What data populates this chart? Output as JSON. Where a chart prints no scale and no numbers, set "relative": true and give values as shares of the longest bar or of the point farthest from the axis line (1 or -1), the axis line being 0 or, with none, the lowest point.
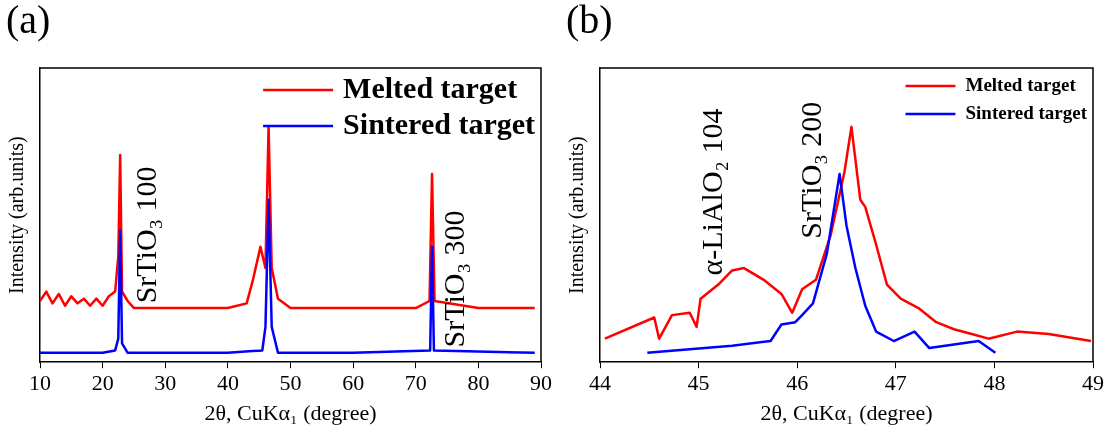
{
  "chart_data": [
    {
      "type": "line",
      "title": "(a)",
      "xlabel": "2θ, CuKα₁ (degree)",
      "ylabel": "Intensity (arb.units)",
      "relative": true,
      "xlim": [
        10,
        90
      ],
      "xticks": [
        10,
        20,
        30,
        40,
        50,
        60,
        70,
        80,
        90
      ],
      "grid": false,
      "legend": "top right",
      "marker": "none",
      "series": [
        {
          "name": "Melted target",
          "color": "#ff0000",
          "x": [
            10,
            11,
            12,
            13,
            14,
            15,
            16,
            17,
            18,
            19,
            20,
            21,
            22,
            22.5,
            22.8,
            23.1,
            24,
            25,
            30,
            35,
            40,
            43,
            44,
            45.2,
            46,
            46.5,
            47,
            48,
            50,
            60,
            70,
            72.2,
            72.6,
            73,
            80,
            89
          ],
          "values": [
            0.26,
            0.3,
            0.25,
            0.29,
            0.24,
            0.28,
            0.25,
            0.27,
            0.24,
            0.27,
            0.24,
            0.28,
            0.3,
            0.45,
            0.88,
            0.3,
            0.26,
            0.23,
            0.23,
            0.23,
            0.23,
            0.25,
            0.35,
            0.49,
            0.4,
            1,
            0.4,
            0.27,
            0.23,
            0.23,
            0.23,
            0.26,
            0.8,
            0.26,
            0.23,
            0.23
          ]
        },
        {
          "name": "Sintered target",
          "color": "#0000ff",
          "x": [
            10,
            20,
            22,
            22.5,
            22.8,
            23.1,
            24,
            40,
            45.5,
            46,
            46.5,
            47,
            48,
            60,
            72.3,
            72.6,
            72.9,
            89
          ],
          "values": [
            0.04,
            0.04,
            0.05,
            0.1,
            0.56,
            0.08,
            0.04,
            0.04,
            0.05,
            0.15,
            0.69,
            0.15,
            0.04,
            0.04,
            0.05,
            0.49,
            0.05,
            0.04
          ]
        }
      ],
      "annotations": [
        "SrTiO₃ 100",
        "SrTiO₃ 300"
      ]
    },
    {
      "type": "line",
      "title": "(b)",
      "xlabel": "2θ, CuKα₁ (degree)",
      "ylabel": "Intensity (arb.units)",
      "relative": true,
      "xlim": [
        44,
        49
      ],
      "xticks": [
        44,
        45,
        46,
        47,
        48,
        49
      ],
      "grid": false,
      "legend": "top right",
      "marker": "none",
      "series": [
        {
          "name": "Melted target",
          "color": "#ff0000",
          "x": [
            44.05,
            44.55,
            44.6,
            44.73,
            44.91,
            44.98,
            45.02,
            45.2,
            45.34,
            45.46,
            45.66,
            45.84,
            45.95,
            46.05,
            46.19,
            46.34,
            46.48,
            46.55,
            46.64,
            46.69,
            46.8,
            46.91,
            47.05,
            47.23,
            47.41,
            47.59,
            47.77,
            47.94,
            48.23,
            48.55,
            48.98
          ],
          "values": [
            0.1,
            0.19,
            0.1,
            0.2,
            0.21,
            0.15,
            0.27,
            0.33,
            0.39,
            0.4,
            0.35,
            0.29,
            0.21,
            0.31,
            0.35,
            0.54,
            0.81,
            1,
            0.69,
            0.66,
            0.5,
            0.33,
            0.27,
            0.23,
            0.17,
            0.14,
            0.12,
            0.1,
            0.13,
            0.12,
            0.09
          ]
        },
        {
          "name": "Sintered target",
          "color": "#0000ff",
          "x": [
            44.48,
            45.34,
            45.73,
            45.84,
            45.98,
            46.05,
            46.16,
            46.3,
            46.43,
            46.5,
            46.59,
            46.69,
            46.8,
            46.98,
            47.19,
            47.34,
            47.84,
            48.01
          ],
          "values": [
            0.04,
            0.07,
            0.09,
            0.16,
            0.17,
            0.2,
            0.25,
            0.46,
            0.8,
            0.58,
            0.4,
            0.24,
            0.13,
            0.09,
            0.13,
            0.06,
            0.09,
            0.04
          ]
        }
      ],
      "annotations": [
        "α-LiAlO₂ 104",
        "SrTiO₃ 200"
      ]
    }
  ]
}
